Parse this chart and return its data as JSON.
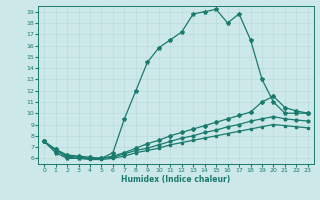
{
  "xlabel": "Humidex (Indice chaleur)",
  "ylabel": "",
  "bg_color": "#cce8e8",
  "line_color": "#1a7a6e",
  "xlim": [
    -0.5,
    23.5
  ],
  "ylim": [
    5.5,
    19.5
  ],
  "xticks": [
    0,
    1,
    2,
    3,
    4,
    5,
    6,
    7,
    8,
    9,
    10,
    11,
    12,
    13,
    14,
    15,
    16,
    17,
    18,
    19,
    20,
    21,
    22,
    23
  ],
  "yticks": [
    6,
    7,
    8,
    9,
    10,
    11,
    12,
    13,
    14,
    15,
    16,
    17,
    18,
    19
  ],
  "series": [
    {
      "x": [
        0,
        1,
        2,
        3,
        4,
        5,
        6,
        7,
        8,
        9,
        10,
        11,
        12,
        13,
        14,
        15,
        16,
        17,
        18,
        19,
        20,
        21,
        22,
        23
      ],
      "y": [
        7.5,
        6.5,
        6.0,
        6.0,
        6.0,
        6.0,
        6.5,
        9.5,
        12.0,
        14.5,
        15.8,
        16.5,
        17.2,
        18.8,
        19.0,
        19.2,
        18.0,
        18.8,
        16.5,
        13.0,
        11.0,
        10.0,
        10.0,
        10.0
      ],
      "marker": "*",
      "markersize": 3,
      "style": "-",
      "lw": 0.9
    },
    {
      "x": [
        0,
        1,
        2,
        3,
        4,
        5,
        6,
        7,
        8,
        9,
        10,
        11,
        12,
        13,
        14,
        15,
        16,
        17,
        18,
        19,
        20,
        21,
        22,
        23
      ],
      "y": [
        7.5,
        6.8,
        6.3,
        6.2,
        6.1,
        6.0,
        6.2,
        6.5,
        6.9,
        7.3,
        7.6,
        8.0,
        8.3,
        8.6,
        8.9,
        9.2,
        9.5,
        9.8,
        10.1,
        11.0,
        11.5,
        10.5,
        10.2,
        10.0
      ],
      "marker": "D",
      "markersize": 2,
      "style": "-",
      "lw": 0.9
    },
    {
      "x": [
        0,
        1,
        2,
        3,
        4,
        5,
        6,
        7,
        8,
        9,
        10,
        11,
        12,
        13,
        14,
        15,
        16,
        17,
        18,
        19,
        20,
        21,
        22,
        23
      ],
      "y": [
        7.5,
        6.8,
        6.2,
        6.1,
        6.0,
        6.0,
        6.1,
        6.4,
        6.7,
        6.9,
        7.2,
        7.5,
        7.8,
        8.0,
        8.3,
        8.5,
        8.8,
        9.0,
        9.3,
        9.5,
        9.7,
        9.5,
        9.4,
        9.3
      ],
      "marker": "o",
      "markersize": 2,
      "style": "-",
      "lw": 0.9
    },
    {
      "x": [
        0,
        1,
        2,
        3,
        4,
        5,
        6,
        7,
        8,
        9,
        10,
        11,
        12,
        13,
        14,
        15,
        16,
        17,
        18,
        19,
        20,
        21,
        22,
        23
      ],
      "y": [
        7.5,
        6.7,
        6.1,
        6.0,
        5.9,
        5.9,
        6.0,
        6.2,
        6.5,
        6.7,
        6.9,
        7.2,
        7.4,
        7.6,
        7.8,
        8.0,
        8.2,
        8.4,
        8.6,
        8.8,
        9.0,
        8.9,
        8.8,
        8.7
      ],
      "marker": "s",
      "markersize": 2,
      "style": "-",
      "lw": 0.9
    }
  ]
}
